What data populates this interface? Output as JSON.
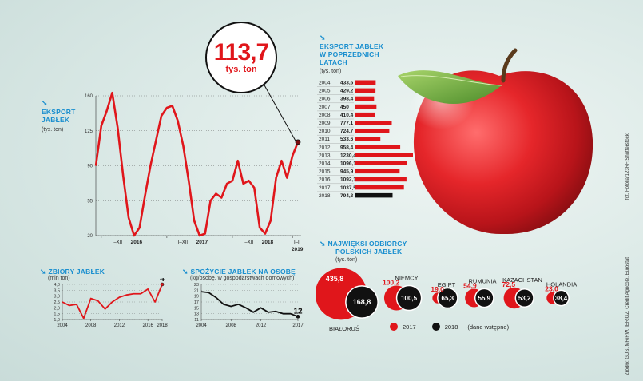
{
  "callout": {
    "value": "113,7",
    "unit": "tys. ton"
  },
  "export_main": {
    "title1": "EKSPORT",
    "title2": "JABŁEK",
    "unit": "(tys. ton)"
  },
  "export_years": {
    "title1": "EKSPORT JABŁEK",
    "title2": "W POPRZEDNICH",
    "title3": "LATACH",
    "unit": "(tys. ton)"
  },
  "harvest": {
    "title": "ZBIORY JABŁEK",
    "unit": "(mln ton)"
  },
  "consumption": {
    "title": "SPOŻYCIE JABŁEK NA OSOBĘ",
    "unit": "(kg/osobę, w gospodarstwach domowych)"
  },
  "buyers": {
    "title1": "NAJWIĘKSI ODBIORCY",
    "title2": "POLSKICH JABŁEK",
    "unit": "(tys. ton)",
    "legend_2017": "2017",
    "legend_2018": "2018",
    "legend_note": "(dane wstępne)"
  },
  "credit": "Źródło: GUS, MRiRW, IERiGŻ, Credit Agricole, Eurostat",
  "photo_credit": "fot. Fotolia/123RF/Shutterstock",
  "chart_data": [
    {
      "type": "line",
      "title": "EKSPORT JABŁEK",
      "ylabel": "(tys. ton)",
      "ylim": [
        20,
        160
      ],
      "yticks": [
        20,
        55,
        90,
        125,
        160
      ],
      "xtick_labels": [
        "I–XII 2016",
        "I–XII 2017",
        "I–XII 2018",
        "I–II 2019"
      ],
      "values": [
        90,
        130,
        145,
        163,
        128,
        80,
        38,
        20,
        28,
        60,
        90,
        115,
        140,
        148,
        150,
        135,
        110,
        75,
        35,
        20,
        22,
        55,
        62,
        58,
        72,
        75,
        95,
        72,
        75,
        68,
        28,
        22,
        35,
        78,
        95,
        78,
        100,
        113.7
      ],
      "highlight_label": "113,7"
    },
    {
      "type": "bar",
      "title": "EKSPORT JABŁEK W POPRZEDNICH LATACH",
      "ylabel": "(tys. ton)",
      "categories": [
        "2004",
        "2005",
        "2006",
        "2007",
        "2008",
        "2009",
        "2010",
        "2011",
        "2012",
        "2013",
        "2014",
        "2015",
        "2016",
        "2017",
        "2018"
      ],
      "values": [
        433.6,
        429.2,
        398.4,
        450,
        410.4,
        777.1,
        724.7,
        533.6,
        958.4,
        1230.4,
        1096.1,
        945.9,
        1092.1,
        1037.5,
        794.3
      ],
      "value_labels": [
        "433,6",
        "429,2",
        "398,4",
        "450",
        "410,4",
        "777,1",
        "724,7",
        "533,6",
        "958,4",
        "1230,4",
        "1096,1",
        "945,9",
        "1092,1",
        "1037,5",
        "794,3"
      ]
    },
    {
      "type": "line",
      "title": "ZBIORY JABŁEK",
      "ylabel": "(mln ton)",
      "ylim": [
        1.0,
        4.0
      ],
      "yticks": [
        "1,0",
        "1,5",
        "2,0",
        "2,5",
        "3,0",
        "3,5",
        "4,0"
      ],
      "x": [
        2004,
        2005,
        2006,
        2007,
        2008,
        2009,
        2010,
        2011,
        2012,
        2013,
        2014,
        2015,
        2016,
        2017,
        2018
      ],
      "xtick_labels": [
        "2004",
        "2008",
        "2012",
        "2016",
        "2018"
      ],
      "values": [
        2.5,
        2.2,
        2.3,
        1.1,
        2.8,
        2.6,
        1.9,
        2.5,
        2.9,
        3.1,
        3.2,
        3.2,
        3.6,
        2.5,
        4.0
      ],
      "end_label": "4"
    },
    {
      "type": "line",
      "title": "SPOŻYCIE JABŁEK NA OSOBĘ",
      "ylabel": "(kg/osobę, w gospodarstwach domowych)",
      "ylim": [
        11,
        23
      ],
      "yticks": [
        "23",
        "21",
        "19",
        "17",
        "15",
        "13",
        "11"
      ],
      "x": [
        2004,
        2005,
        2006,
        2007,
        2008,
        2009,
        2010,
        2011,
        2012,
        2013,
        2014,
        2015,
        2016,
        2017
      ],
      "xtick_labels": [
        "2004",
        "2008",
        "2012",
        "2017"
      ],
      "values": [
        20.5,
        20.2,
        18.5,
        16.2,
        15.5,
        16.2,
        15.0,
        13.5,
        15.0,
        13.5,
        13.8,
        13.0,
        13.0,
        12.0
      ],
      "end_label": "12"
    },
    {
      "type": "bubble",
      "title": "NAJWIĘKSI ODBIORCY POLSKICH JABŁEK",
      "ylabel": "(tys. ton)",
      "categories": [
        "BIAŁORUŚ",
        "NIEMCY",
        "EGIPT",
        "RUMUNIA",
        "KAZACHSTAN",
        "HOLANDIA"
      ],
      "series": [
        {
          "name": "2017",
          "values": [
            435.8,
            100.2,
            19.0,
            54.9,
            72.5,
            23.0
          ],
          "labels": [
            "435,8",
            "100,2",
            "19,0",
            "54,9",
            "72,5",
            "23,0"
          ]
        },
        {
          "name": "2018",
          "values": [
            168.8,
            100.5,
            65.3,
            55.9,
            53.2,
            38.4
          ],
          "labels": [
            "168,8",
            "100,5",
            "65,3",
            "55,9",
            "53,2",
            "38,4"
          ]
        }
      ]
    }
  ]
}
